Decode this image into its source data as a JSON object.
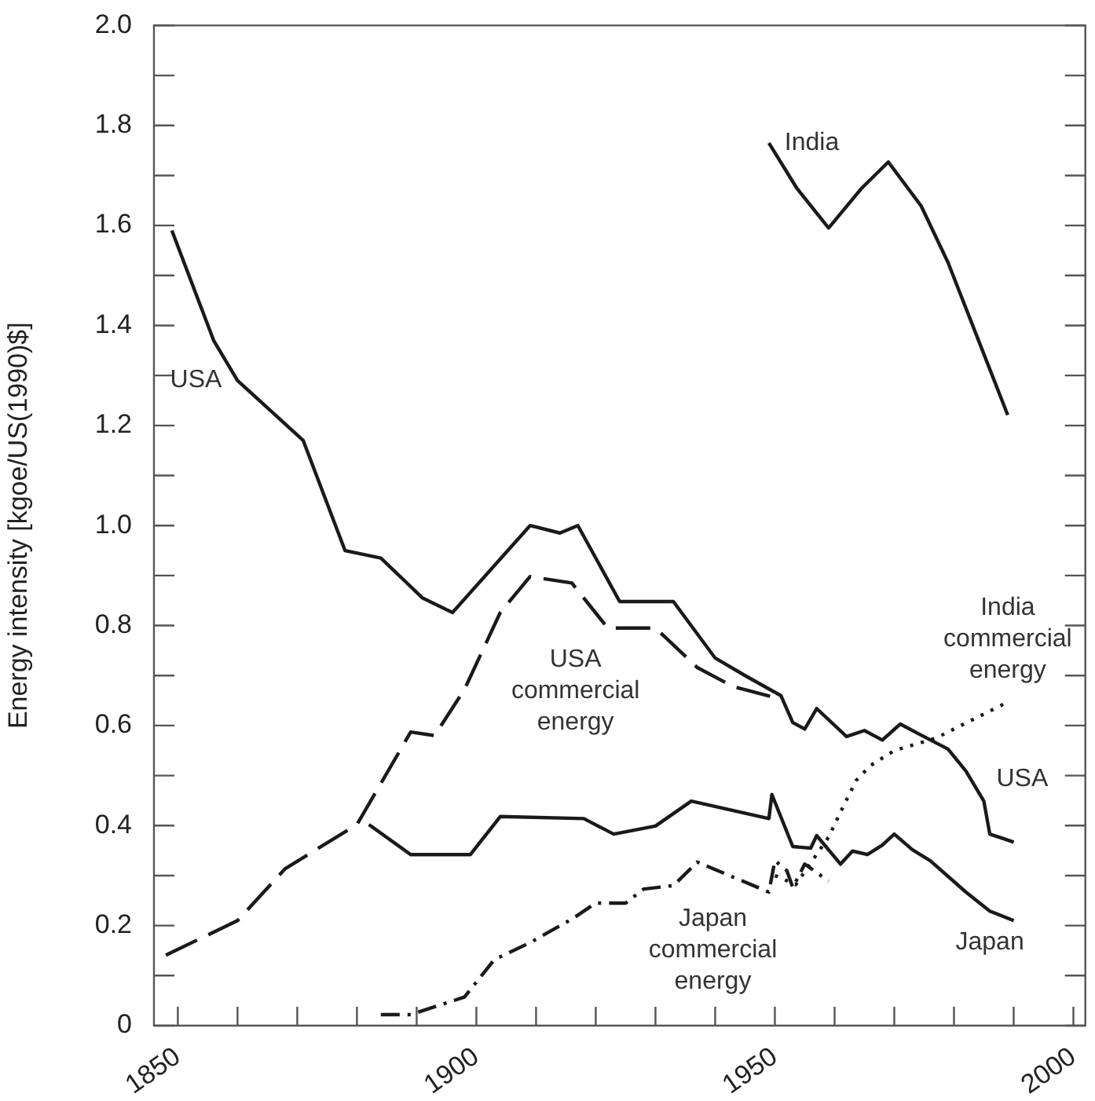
{
  "chart_data": {
    "type": "line",
    "ylabel": "Energy intensity [kgoe/US(1990)$]",
    "xlim": [
      1846,
      2002
    ],
    "ylim": [
      0,
      2.0
    ],
    "xticks": [
      {
        "value": 1850,
        "label": "1850"
      },
      {
        "value": 1860,
        "label": null
      },
      {
        "value": 1870,
        "label": null
      },
      {
        "value": 1880,
        "label": null
      },
      {
        "value": 1890,
        "label": null
      },
      {
        "value": 1900,
        "label": "1900"
      },
      {
        "value": 1910,
        "label": null
      },
      {
        "value": 1920,
        "label": null
      },
      {
        "value": 1930,
        "label": null
      },
      {
        "value": 1940,
        "label": null
      },
      {
        "value": 1950,
        "label": "1950"
      },
      {
        "value": 1960,
        "label": null
      },
      {
        "value": 1970,
        "label": null
      },
      {
        "value": 1980,
        "label": null
      },
      {
        "value": 1990,
        "label": null
      },
      {
        "value": 2000,
        "label": "2000"
      }
    ],
    "yticks": [
      0,
      {
        "value": 0.1,
        "label": null
      },
      0.2,
      {
        "value": 0.3,
        "label": null
      },
      0.4,
      {
        "value": 0.5,
        "label": null
      },
      0.6,
      {
        "value": 0.7,
        "label": null
      },
      0.8,
      {
        "value": 0.9,
        "label": null
      },
      {
        "value": 1,
        "label": "1.0"
      },
      {
        "value": 1.1,
        "label": null
      },
      1.2,
      {
        "value": 1.3,
        "label": null
      },
      1.4,
      {
        "value": 1.5,
        "label": null
      },
      1.6,
      {
        "value": 1.7,
        "label": null
      },
      1.8,
      {
        "value": 1.9,
        "label": null
      },
      {
        "value": 2,
        "label": "2.0"
      }
    ],
    "series": [
      {
        "name": "USA",
        "color": "#1a1a1a",
        "line_style": "solid",
        "x": [
          1849,
          1856,
          1860,
          1871,
          1878,
          1884,
          1891,
          1896,
          1909,
          1914,
          1917,
          1924,
          1933,
          1940,
          1945,
          1951,
          1953,
          1955,
          1957,
          1962,
          1965,
          1968,
          1971,
          1974,
          1979,
          1982,
          1985,
          1986,
          1990
        ],
        "values": [
          1.59,
          1.37,
          1.29,
          1.17,
          0.95,
          0.935,
          0.855,
          0.826,
          1.0,
          0.985,
          1.0,
          0.848,
          0.848,
          0.735,
          0.7,
          0.66,
          0.606,
          0.593,
          0.634,
          0.578,
          0.59,
          0.571,
          0.603,
          0.584,
          0.553,
          0.509,
          0.449,
          0.383,
          0.367
        ]
      },
      {
        "name": "USA commercial energy",
        "color": "#1a1a1a",
        "line_style": "dashed",
        "x": [
          1848,
          1860,
          1868,
          1880,
          1889,
          1893,
          1898,
          1904,
          1909,
          1916,
          1922,
          1930,
          1937,
          1943,
          1951
        ],
        "values": [
          0.141,
          0.21,
          0.314,
          0.402,
          0.587,
          0.58,
          0.672,
          0.826,
          0.898,
          0.885,
          0.795,
          0.795,
          0.716,
          0.678,
          0.653
        ]
      },
      {
        "name": "Japan",
        "color": "#1a1a1a",
        "line_style": "solid",
        "x": [
          1882,
          1889,
          1899,
          1904,
          1918,
          1923,
          1930,
          1936,
          1949,
          1949.5,
          1953,
          1956,
          1957,
          1961,
          1963,
          1965.5,
          1968,
          1970,
          1973,
          1976,
          1982,
          1986,
          1990
        ],
        "values": [
          0.402,
          0.342,
          0.342,
          0.418,
          0.414,
          0.383,
          0.399,
          0.449,
          0.414,
          0.462,
          0.358,
          0.355,
          0.38,
          0.323,
          0.349,
          0.342,
          0.361,
          0.383,
          0.352,
          0.33,
          0.267,
          0.229,
          0.21
        ]
      },
      {
        "name": "Japan commercial energy",
        "color": "#1a1a1a",
        "line_style": "dashdot",
        "x": [
          1884,
          1889,
          1898,
          1903,
          1909,
          1916,
          1920,
          1925,
          1928,
          1933,
          1937,
          1949,
          1950,
          1952,
          1953,
          1955,
          1959
        ],
        "values": [
          0.022,
          0.022,
          0.057,
          0.132,
          0.166,
          0.213,
          0.245,
          0.245,
          0.273,
          0.28,
          0.327,
          0.267,
          0.33,
          0.31,
          0.276,
          0.323,
          0.289
        ]
      },
      {
        "name": "India commercial energy",
        "color": "#1a1a1a",
        "line_style": "dotted",
        "x": [
          1950,
          1953.5,
          1959,
          1961,
          1963.6,
          1966,
          1970,
          1977,
          1989
        ],
        "values": [
          0.3,
          0.282,
          0.377,
          0.427,
          0.49,
          0.52,
          0.55,
          0.575,
          0.647
        ]
      },
      {
        "name": "India",
        "color": "#1a1a1a",
        "line_style": "solid",
        "x": [
          1949,
          1953.7,
          1959,
          1964.5,
          1969,
          1974.5,
          1979,
          1989
        ],
        "values": [
          1.765,
          1.674,
          1.595,
          1.674,
          1.727,
          1.639,
          1.526,
          1.221
        ]
      }
    ],
    "annotations": [
      {
        "text": "USA",
        "x": 1985,
        "y": 0.449
      }
    ]
  }
}
